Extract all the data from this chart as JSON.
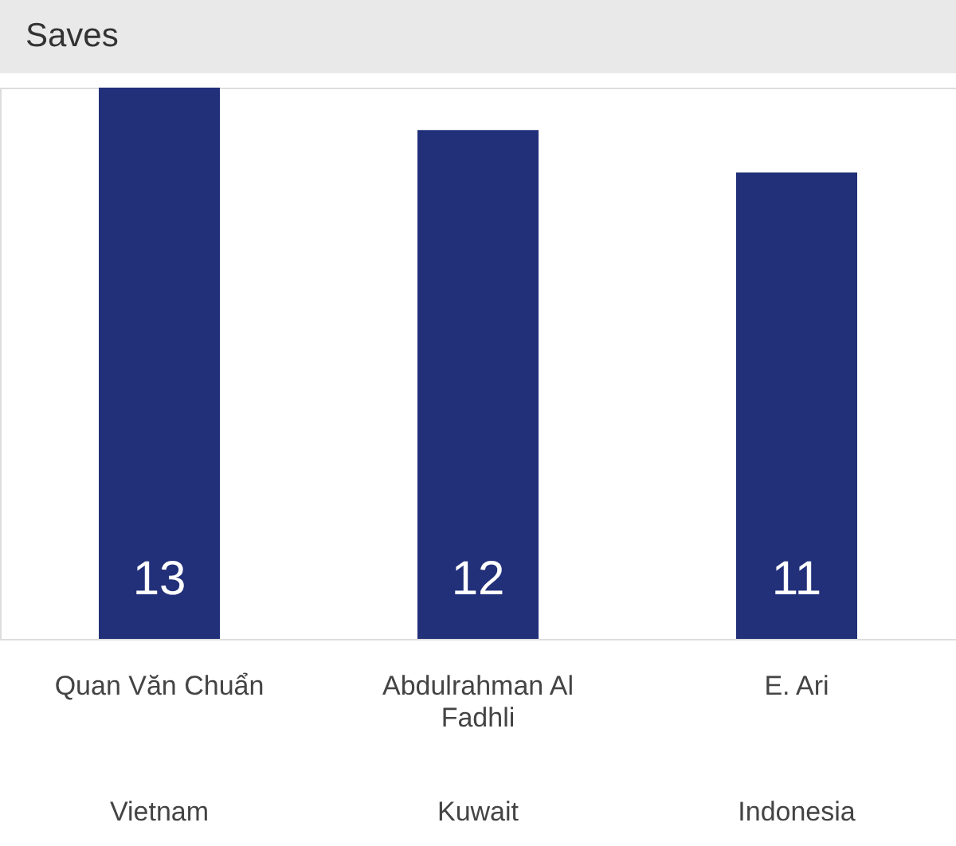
{
  "chart_data": {
    "type": "bar",
    "title": "Saves",
    "categories": [
      "Quan Văn Chuẩn",
      "Abdulrahman Al Fadhli",
      "E. Ari"
    ],
    "values": [
      13,
      12,
      11
    ],
    "color": "#22307a",
    "data_labels": true,
    "annotations": [
      "Vietnam",
      "Kuwait",
      "Indonesia"
    ]
  }
}
